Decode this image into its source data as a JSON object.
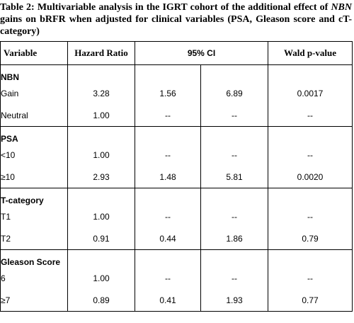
{
  "title_parts": [
    "Table 2: Multivariable analysis in the IGRT cohort of the additional effect of ",
    "NBN",
    " gains on bRFR when adjusted for clinical variables (PSA, Gleason score and cT-category)"
  ],
  "table": {
    "header": [
      "Variable",
      "Hazard Ratio",
      "95% CI",
      "Wald p-value"
    ],
    "groups": [
      {
        "label": "NBN",
        "rows": [
          [
            "Gain",
            "3.28",
            "1.56",
            "6.89",
            "0.0017"
          ],
          [
            "Neutral",
            "1.00",
            "--",
            "--",
            "--"
          ]
        ]
      },
      {
        "label": "PSA",
        "rows": [
          [
            "<10",
            "1.00",
            "--",
            "--",
            "--"
          ],
          [
            "≥10",
            "2.93",
            "1.48",
            "5.81",
            "0.0020"
          ]
        ]
      },
      {
        "label": "T-category",
        "rows": [
          [
            "T1",
            "1.00",
            "--",
            "--",
            "--"
          ],
          [
            "T2",
            "0.91",
            "0.44",
            "1.86",
            "0.79"
          ]
        ]
      },
      {
        "label": "Gleason Score",
        "rows": [
          [
            "6",
            "1.00",
            "--",
            "--",
            "--"
          ],
          [
            "≥7",
            "0.89",
            "0.41",
            "1.93",
            "0.77"
          ]
        ]
      }
    ]
  }
}
